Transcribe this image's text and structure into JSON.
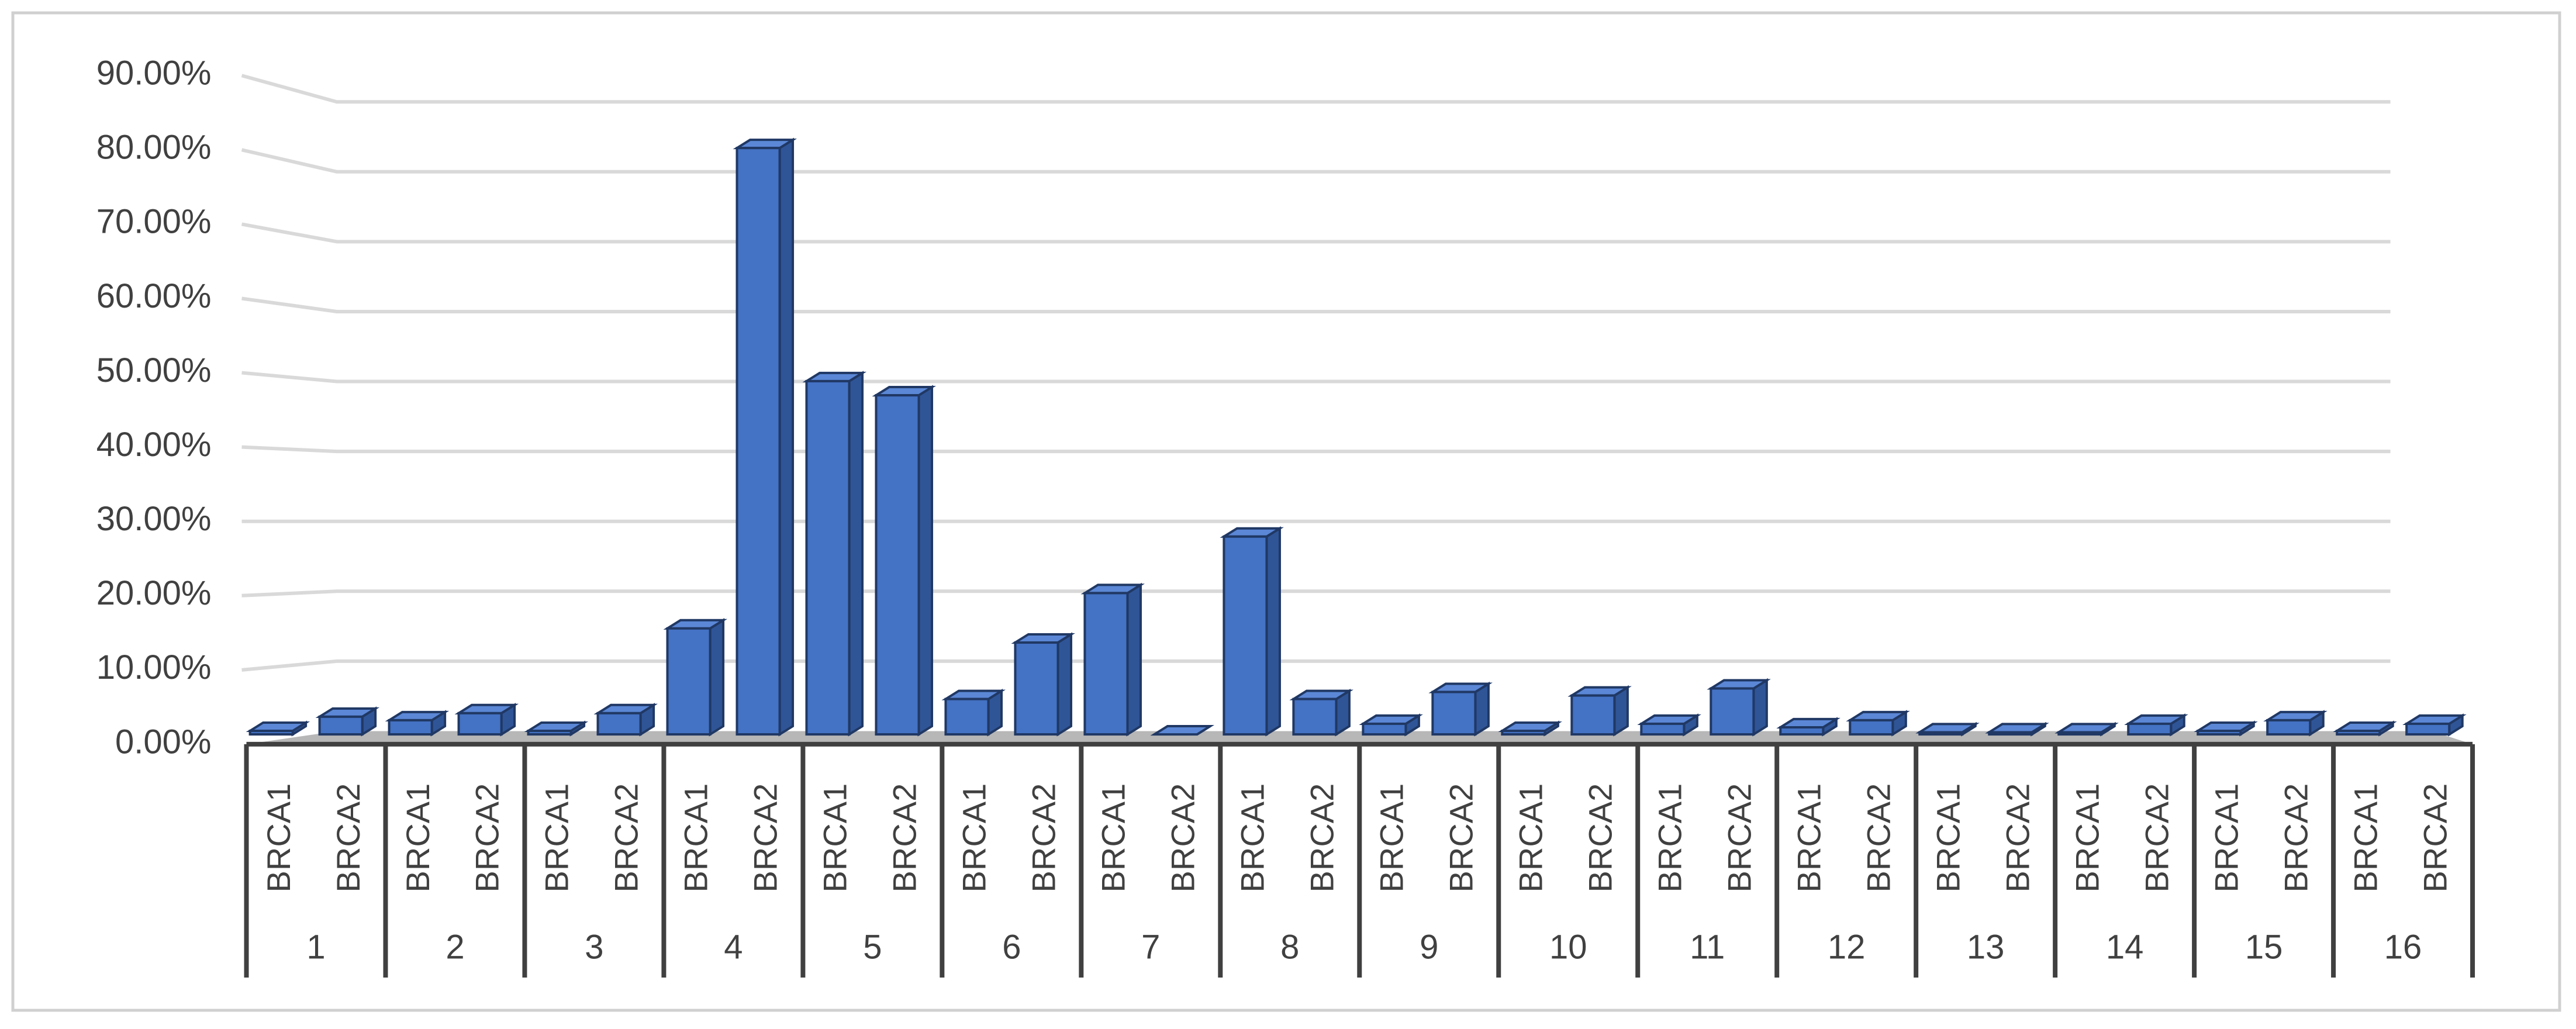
{
  "chart_data": {
    "type": "bar3d",
    "categories": [
      "BRCA1",
      "BRCA2",
      "BRCA1",
      "BRCA2",
      "BRCA1",
      "BRCA2",
      "BRCA1",
      "BRCA2",
      "BRCA1",
      "BRCA2",
      "BRCA1",
      "BRCA2",
      "BRCA1",
      "BRCA2",
      "BRCA1",
      "BRCA2",
      "BRCA1",
      "BRCA2",
      "BRCA1",
      "BRCA2",
      "BRCA1",
      "BRCA2",
      "BRCA1",
      "BRCA2",
      "BRCA1",
      "BRCA2",
      "BRCA1",
      "BRCA2",
      "BRCA1",
      "BRCA2",
      "BRCA1",
      "BRCA2"
    ],
    "groups": [
      "1",
      "2",
      "3",
      "4",
      "5",
      "6",
      "7",
      "8",
      "9",
      "10",
      "11",
      "12",
      "13",
      "14",
      "15",
      "16"
    ],
    "values": [
      0.5,
      2.5,
      2,
      3,
      0.5,
      3,
      15,
      83,
      50,
      48,
      5,
      13,
      20,
      0,
      28,
      5,
      1.5,
      6,
      0.5,
      5.5,
      1.5,
      6.5,
      1,
      2,
      0.3,
      0.3,
      0.3,
      1.5,
      0.5,
      2,
      0.5,
      1.5
    ],
    "color": "#4472c4",
    "ylim": [
      0,
      90
    ],
    "yticks": [
      {
        "value": 0,
        "label": "0.00%"
      },
      {
        "value": 10,
        "label": "10.00%"
      },
      {
        "value": 20,
        "label": "20.00%"
      },
      {
        "value": 30,
        "label": "30.00%"
      },
      {
        "value": 40,
        "label": "40.00%"
      },
      {
        "value": 50,
        "label": "50.00%"
      },
      {
        "value": 60,
        "label": "60.00%"
      },
      {
        "value": 70,
        "label": "70.00%"
      },
      {
        "value": 80,
        "label": "80.00%"
      },
      {
        "value": 90,
        "label": "90.00%"
      }
    ],
    "grid": true
  }
}
